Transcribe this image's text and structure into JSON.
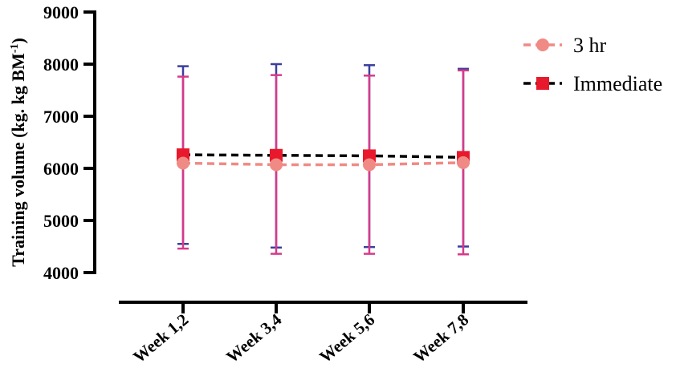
{
  "chart_data": {
    "type": "line",
    "categories": [
      "Week 1,2",
      "Week 3,4",
      "Week 5,6",
      "Week 7,8"
    ],
    "ylabel": "Training volume (kg. kg BM",
    "ylabel_sup": "-1",
    "ylabel_close": ")",
    "ylim": [
      4000,
      9000
    ],
    "yticks": [
      4000,
      5000,
      6000,
      7000,
      8000,
      9000
    ],
    "grid": false,
    "legend_position": "top-right",
    "series": [
      {
        "name": "3 hr",
        "values": [
          6100,
          6070,
          6070,
          6110
        ],
        "err_low": [
          4460,
          4360,
          4360,
          4350
        ],
        "err_high": [
          7760,
          7790,
          7780,
          7880
        ],
        "color": "#f08a84",
        "marker": "circle",
        "line_style": "dashed",
        "error_bar_color": "#d63a8a"
      },
      {
        "name": "Immediate",
        "values": [
          6260,
          6250,
          6240,
          6210
        ],
        "err_low": [
          4550,
          4480,
          4490,
          4500
        ],
        "err_high": [
          7960,
          8000,
          7980,
          7910
        ],
        "color": "#e8192c",
        "marker": "square",
        "line_color": "#000000",
        "line_style": "dashed",
        "error_bar_color": "#3b3e9e"
      }
    ]
  }
}
